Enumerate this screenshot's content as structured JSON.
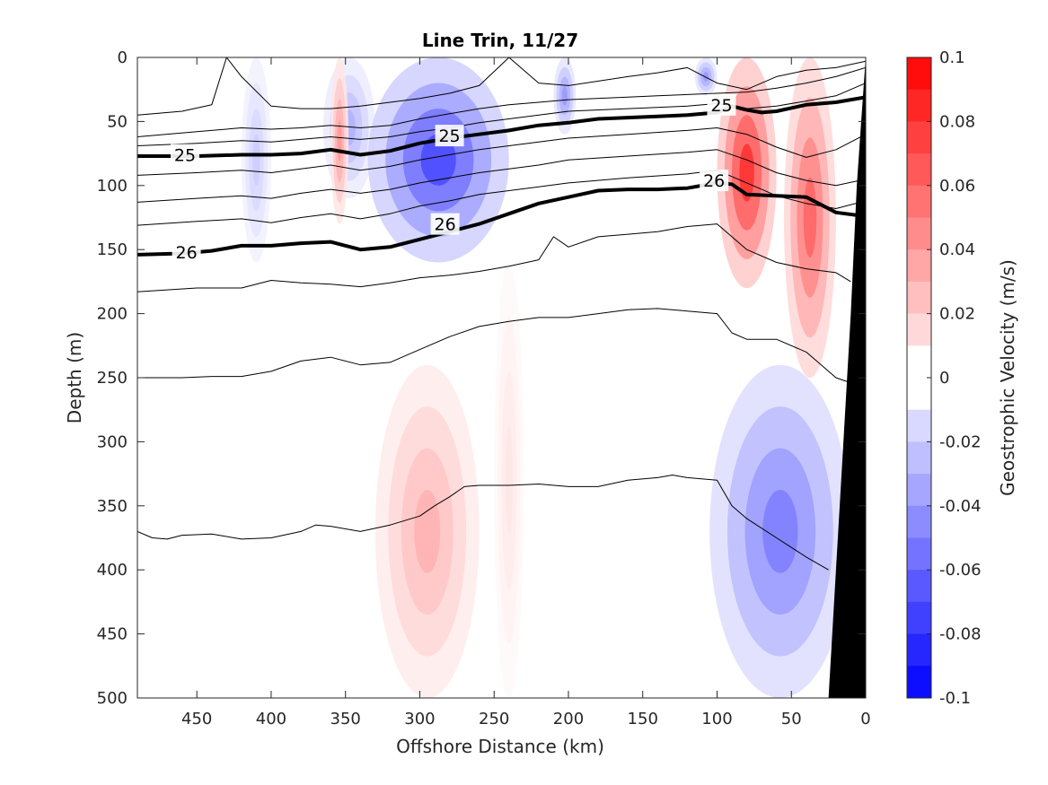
{
  "chart_data": {
    "type": "heatmap",
    "title": "Line Trin, 11/27",
    "xlabel": "Offshore Distance (km)",
    "ylabel": "Depth (m)",
    "xlim": [
      490,
      0
    ],
    "ylim": [
      0,
      500
    ],
    "x_reversed": true,
    "y_reversed": true,
    "x_ticks": [
      450,
      400,
      350,
      300,
      250,
      200,
      150,
      100,
      50,
      0
    ],
    "y_ticks": [
      0,
      50,
      100,
      150,
      200,
      250,
      300,
      350,
      400,
      450,
      500
    ],
    "colorbar": {
      "label": "Geostrophic Velocity (m/s)",
      "clim": [
        -0.1,
        0.1
      ],
      "ticks": [
        0.1,
        0.08,
        0.06,
        0.04,
        0.02,
        0,
        -0.02,
        -0.04,
        -0.06,
        -0.08,
        -0.1
      ],
      "tick_labels": [
        "0.1",
        "0.08",
        "0.06",
        "0.04",
        "0.02",
        "0",
        "-0.02",
        "-0.04",
        "-0.06",
        "-0.08",
        "-0.1"
      ],
      "levels": 20,
      "positive_color": "#ff0000",
      "negative_color": "#0000ff",
      "zero_color": "#ffffff"
    },
    "velocity_features": [
      {
        "x_range": [
          400,
          420
        ],
        "depth_range": [
          0,
          160
        ],
        "value": -0.02
      },
      {
        "x_range": [
          365,
          330
        ],
        "depth_range": [
          0,
          110
        ],
        "value": -0.03
      },
      {
        "x_range": [
          360,
          348
        ],
        "depth_range": [
          0,
          130
        ],
        "value": 0.04
      },
      {
        "x_range": [
          335,
          240
        ],
        "depth_range": [
          0,
          160
        ],
        "value": -0.07
      },
      {
        "x_range": [
          210,
          195
        ],
        "depth_range": [
          0,
          60
        ],
        "value": -0.04
      },
      {
        "x_range": [
          115,
          100
        ],
        "depth_range": [
          0,
          30
        ],
        "value": -0.04
      },
      {
        "x_range": [
          100,
          60
        ],
        "depth_range": [
          0,
          180
        ],
        "value": 0.08
      },
      {
        "x_range": [
          55,
          20
        ],
        "depth_range": [
          0,
          250
        ],
        "value": 0.06
      },
      {
        "x_range": [
          330,
          260
        ],
        "depth_range": [
          240,
          500
        ],
        "value": 0.03
      },
      {
        "x_range": [
          250,
          230
        ],
        "depth_range": [
          160,
          500
        ],
        "value": 0.01
      },
      {
        "x_range": [
          105,
          10
        ],
        "depth_range": [
          240,
          500
        ],
        "value": -0.05
      }
    ],
    "density_contours": [
      {
        "level": 25,
        "labelled": true,
        "x": [
          490,
          450,
          420,
          400,
          380,
          360,
          340,
          320,
          300,
          280,
          260,
          240,
          220,
          200,
          180,
          160,
          140,
          120,
          100,
          90,
          80,
          70,
          60,
          40,
          20,
          0
        ],
        "depth": [
          77,
          77,
          76,
          76,
          75,
          72,
          76,
          73,
          67,
          63,
          60,
          57,
          53,
          51,
          48,
          47,
          46,
          45,
          43,
          38,
          41,
          43,
          42,
          37,
          35,
          31
        ]
      },
      {
        "level": 26,
        "labelled": true,
        "x": [
          490,
          460,
          440,
          420,
          400,
          380,
          360,
          340,
          320,
          300,
          280,
          260,
          240,
          220,
          200,
          180,
          160,
          140,
          120,
          100,
          90,
          80,
          60,
          40,
          20,
          0
        ],
        "depth": [
          154,
          153,
          151,
          147,
          147,
          145,
          144,
          150,
          148,
          142,
          136,
          130,
          122,
          114,
          109,
          104,
          103,
          103,
          102,
          98,
          99,
          107,
          108,
          109,
          121,
          124
        ]
      },
      {
        "level": null,
        "labelled": false,
        "x": [
          490,
          460,
          440,
          430,
          420,
          400,
          380,
          360,
          340,
          320,
          300,
          280,
          260,
          240,
          220,
          200,
          160,
          140,
          120,
          100,
          80,
          60,
          40,
          20,
          0
        ],
        "depth": [
          45,
          42,
          37,
          0,
          15,
          38,
          40,
          40,
          38,
          35,
          32,
          28,
          22,
          0,
          20,
          22,
          15,
          12,
          8,
          20,
          25,
          15,
          10,
          8,
          3
        ]
      },
      {
        "level": null,
        "labelled": false,
        "x": [
          490,
          450,
          420,
          400,
          380,
          360,
          340,
          320,
          300,
          280,
          260,
          240,
          220,
          200,
          160,
          140,
          120,
          100,
          80,
          60,
          40,
          20,
          0
        ],
        "depth": [
          62,
          58,
          55,
          56,
          55,
          53,
          55,
          53,
          48,
          44,
          40,
          37,
          35,
          33,
          31,
          30,
          29,
          28,
          27,
          24,
          20,
          15,
          8
        ]
      },
      {
        "level": null,
        "labelled": false,
        "x": [
          490,
          450,
          420,
          400,
          380,
          360,
          340,
          320,
          300,
          280,
          260,
          240,
          220,
          200,
          160,
          120,
          100,
          80,
          60,
          40,
          20,
          0
        ],
        "depth": [
          69,
          67,
          65,
          66,
          64,
          62,
          64,
          62,
          58,
          55,
          51,
          48,
          45,
          42,
          40,
          38,
          36,
          40,
          38,
          34,
          30,
          20
        ]
      },
      {
        "level": null,
        "labelled": false,
        "x": [
          490,
          450,
          420,
          400,
          380,
          360,
          340,
          320,
          300,
          280,
          260,
          240,
          220,
          200,
          160,
          120,
          100,
          80,
          60,
          40,
          20,
          0
        ],
        "depth": [
          92,
          90,
          88,
          90,
          87,
          84,
          88,
          85,
          80,
          76,
          72,
          69,
          66,
          63,
          60,
          57,
          55,
          60,
          70,
          78,
          72,
          60
        ]
      },
      {
        "level": null,
        "labelled": false,
        "x": [
          490,
          450,
          420,
          400,
          380,
          360,
          340,
          320,
          300,
          280,
          260,
          240,
          220,
          200,
          160,
          120,
          100,
          80,
          60,
          40,
          20,
          0
        ],
        "depth": [
          113,
          110,
          108,
          110,
          106,
          103,
          106,
          103,
          98,
          94,
          90,
          87,
          84,
          80,
          77,
          74,
          72,
          80,
          90,
          96,
          100,
          95
        ]
      },
      {
        "level": null,
        "labelled": false,
        "x": [
          490,
          450,
          420,
          400,
          380,
          360,
          340,
          320,
          300,
          280,
          260,
          240,
          220,
          200,
          160,
          120,
          100,
          80,
          60,
          40,
          20,
          0
        ],
        "depth": [
          131,
          128,
          126,
          129,
          125,
          122,
          126,
          122,
          116,
          112,
          107,
          104,
          101,
          98,
          94,
          91,
          88,
          98,
          108,
          114,
          118,
          112
        ]
      },
      {
        "level": null,
        "labelled": false,
        "x": [
          490,
          450,
          420,
          400,
          380,
          360,
          340,
          320,
          300,
          280,
          260,
          240,
          220,
          210,
          200,
          180,
          160,
          140,
          120,
          100,
          80,
          60,
          40,
          20,
          10
        ],
        "depth": [
          183,
          180,
          180,
          174,
          176,
          177,
          179,
          176,
          172,
          170,
          167,
          163,
          158,
          140,
          148,
          140,
          138,
          136,
          132,
          130,
          150,
          160,
          165,
          168,
          175
        ]
      },
      {
        "level": null,
        "labelled": false,
        "x": [
          490,
          460,
          440,
          420,
          400,
          380,
          360,
          340,
          320,
          300,
          280,
          260,
          240,
          220,
          200,
          180,
          160,
          140,
          120,
          100,
          90,
          80,
          60,
          40,
          20,
          5
        ],
        "depth": [
          250,
          250,
          249,
          249,
          245,
          237,
          234,
          240,
          238,
          228,
          218,
          210,
          206,
          203,
          203,
          200,
          197,
          196,
          198,
          200,
          215,
          220,
          220,
          230,
          250,
          256
        ]
      },
      {
        "level": null,
        "labelled": false,
        "x": [
          490,
          480,
          470,
          460,
          440,
          420,
          400,
          380,
          370,
          360,
          340,
          320,
          300,
          290,
          280,
          270,
          260,
          240,
          220,
          200,
          180,
          160,
          140,
          130,
          120,
          100,
          90,
          80,
          60,
          40,
          25
        ],
        "depth": [
          370,
          375,
          376,
          373,
          372,
          376,
          375,
          370,
          365,
          366,
          370,
          365,
          358,
          350,
          343,
          335,
          334,
          334,
          333,
          335,
          335,
          330,
          328,
          326,
          328,
          330,
          350,
          360,
          375,
          390,
          400
        ]
      }
    ],
    "contour_labels": [
      {
        "text": "25",
        "x": 458,
        "depth": 76
      },
      {
        "text": "25",
        "x": 280,
        "depth": 61
      },
      {
        "text": "25",
        "x": 97,
        "depth": 37
      },
      {
        "text": "26",
        "x": 457,
        "depth": 152
      },
      {
        "text": "26",
        "x": 283,
        "depth": 130
      },
      {
        "text": "26",
        "x": 102,
        "depth": 96
      }
    ],
    "bathymetry_mask": {
      "color": "#000000",
      "boundary_x": [
        0,
        3,
        6,
        10,
        15,
        20,
        25,
        25
      ],
      "boundary_depth": [
        0,
        50,
        100,
        200,
        300,
        400,
        500,
        500
      ]
    }
  }
}
